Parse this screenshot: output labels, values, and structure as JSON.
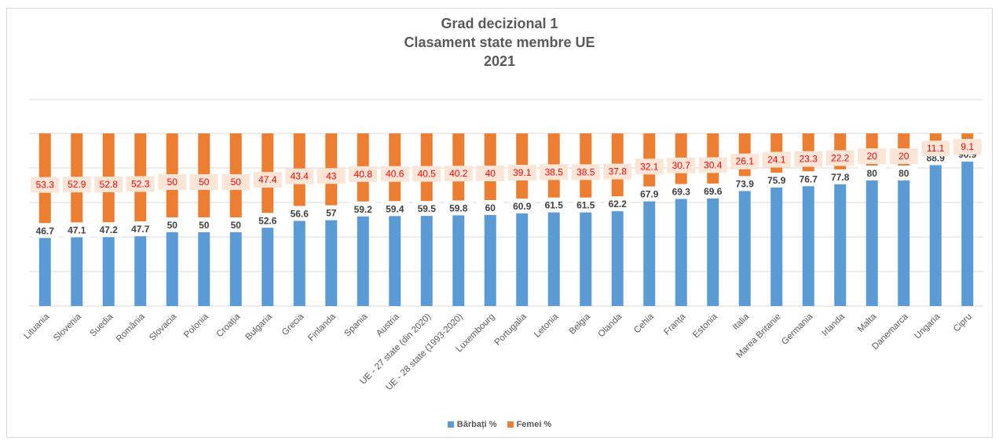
{
  "chart_data": {
    "type": "bar",
    "stacked": true,
    "percent": true,
    "title_lines": [
      "Grad decizional 1",
      "Clasament state membre UE",
      "2021"
    ],
    "categories": [
      "Lituania",
      "Slovenia",
      "Suedia",
      "România",
      "Slovacia",
      "Polonia",
      "Croația",
      "Bulgaria",
      "Grecia",
      "Finlanda",
      "Spania",
      "Austria",
      "UE - 27 state (din 2020)",
      "UE - 28 state (1993-2020)",
      "Luxembourg",
      "Portugalia",
      "Letonia",
      "Belgia",
      "Olanda",
      "Cehia",
      "Franța",
      "Estonia",
      "Italia",
      "Marea Britanie",
      "Germania",
      "Irlanda",
      "Malta",
      "Danemarca",
      "Ungaria",
      "Cipru"
    ],
    "series": [
      {
        "name": "Bărbați %",
        "color": "#5b9bd5",
        "label_color": "#404040",
        "values": [
          46.7,
          47.1,
          47.2,
          47.7,
          50,
          50,
          50,
          52.6,
          56.6,
          57,
          59.2,
          59.4,
          59.5,
          59.8,
          60,
          60.9,
          61.5,
          61.5,
          62.2,
          67.9,
          69.3,
          69.6,
          73.9,
          75.9,
          76.7,
          77.8,
          80,
          80,
          88.9,
          90.9
        ]
      },
      {
        "name": "Femei %",
        "color": "#ed7d31",
        "label_color": "#ff0000",
        "values": [
          53.3,
          52.9,
          52.8,
          52.3,
          50,
          50,
          50,
          47.4,
          43.4,
          43,
          40.8,
          40.6,
          40.5,
          40.2,
          40,
          39.1,
          38.5,
          38.5,
          37.8,
          32.1,
          30.7,
          30.4,
          26.1,
          24.1,
          23.3,
          22.2,
          20,
          20,
          11.1,
          9.1
        ]
      }
    ],
    "ylim": [
      0,
      100
    ],
    "grid": true,
    "legend_position": "bottom"
  }
}
